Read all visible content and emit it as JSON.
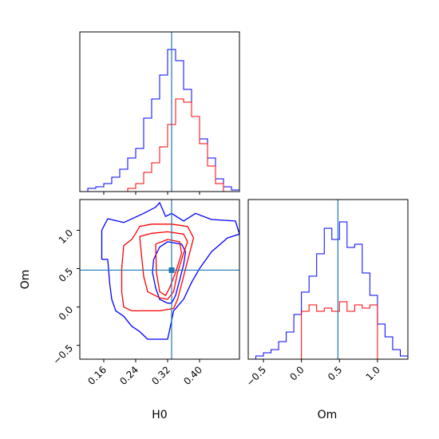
{
  "chart_data": [
    {
      "type": "histogram",
      "panel": "H0-marginal",
      "xlim": [
        0.1,
        0.5
      ],
      "truth": 0.33,
      "bins": [
        0.1,
        0.11,
        0.12,
        0.13,
        0.14,
        0.15,
        0.16,
        0.17,
        0.18,
        0.19,
        0.2,
        0.21,
        0.22,
        0.23,
        0.24,
        0.25,
        0.26,
        0.27,
        0.28,
        0.29,
        0.3,
        0.31,
        0.32,
        0.33,
        0.34,
        0.35,
        0.36,
        0.37,
        0.38,
        0.39,
        0.4,
        0.41,
        0.42,
        0.43,
        0.44,
        0.45,
        0.46,
        0.47,
        0.48,
        0.49,
        0.5
      ],
      "series": [
        {
          "color": "#0000ff",
          "values": [
            0,
            0,
            0.02,
            0.02,
            0.03,
            0.03,
            0.05,
            0.05,
            0.09,
            0.09,
            0.14,
            0.14,
            0.21,
            0.21,
            0.27,
            0.27,
            0.46,
            0.46,
            0.58,
            0.58,
            0.73,
            0.73,
            0.89,
            0.89,
            0.82,
            0.82,
            0.64,
            0.64,
            0.47,
            0.47,
            0.33,
            0.33,
            0.21,
            0.21,
            0.08,
            0.08,
            0.03,
            0.03,
            0.01,
            0.01
          ]
        },
        {
          "color": "#ff0000",
          "values": [
            0,
            0,
            0,
            0,
            0,
            0,
            0,
            0,
            0,
            0,
            0,
            0,
            0.02,
            0.02,
            0.05,
            0.05,
            0.12,
            0.12,
            0.18,
            0.18,
            0.28,
            0.28,
            0.42,
            0.42,
            0.58,
            0.58,
            0.56,
            0.56,
            0.47,
            0.47,
            0.3,
            0.3,
            0.16,
            0.16,
            0.05,
            0.05,
            0,
            0,
            0,
            0
          ]
        }
      ],
      "ticks": [
        "0.16",
        "0.24",
        "0.32",
        "0.40"
      ]
    },
    {
      "type": "contour",
      "panel": "H0-Om-joint",
      "xlabel": "H0",
      "ylabel": "Om",
      "xlim": [
        0.1,
        0.5
      ],
      "ylim": [
        -0.68,
        1.4
      ],
      "x_ticks": [
        0.16,
        0.24,
        0.32,
        0.4
      ],
      "y_ticks": [
        -0.5,
        0.0,
        0.5,
        1.0
      ],
      "x_tick_labels": [
        "0.16",
        "0.24",
        "0.32",
        "0.40"
      ],
      "y_tick_labels": [
        "−0.5",
        "0.0",
        "0.5",
        "1.0"
      ],
      "truth": {
        "x": 0.33,
        "y": 0.48
      },
      "series": [
        {
          "color": "#0000ff",
          "contours": [
            [
              [
                0.155,
                0.62
              ],
              [
                0.155,
                1.0
              ],
              [
                0.17,
                1.15
              ],
              [
                0.21,
                1.1
              ],
              [
                0.26,
                1.22
              ],
              [
                0.29,
                1.3
              ],
              [
                0.3,
                1.36
              ],
              [
                0.315,
                1.18
              ],
              [
                0.33,
                1.22
              ],
              [
                0.36,
                1.12
              ],
              [
                0.39,
                1.22
              ],
              [
                0.43,
                1.14
              ],
              [
                0.49,
                1.12
              ],
              [
                0.5,
                0.95
              ],
              [
                0.47,
                0.9
              ],
              [
                0.43,
                0.72
              ],
              [
                0.4,
                0.5
              ],
              [
                0.38,
                0.32
              ],
              [
                0.36,
                0.1
              ],
              [
                0.335,
                -0.05
              ],
              [
                0.325,
                -0.3
              ],
              [
                0.32,
                -0.42
              ],
              [
                0.27,
                -0.42
              ],
              [
                0.25,
                -0.32
              ],
              [
                0.23,
                -0.25
              ],
              [
                0.21,
                -0.12
              ],
              [
                0.19,
                -0.05
              ],
              [
                0.18,
                0.1
              ],
              [
                0.175,
                0.3
              ],
              [
                0.17,
                0.62
              ],
              [
                0.155,
                0.62
              ]
            ],
            [
              [
                0.285,
                0.62
              ],
              [
                0.3,
                0.78
              ],
              [
                0.32,
                0.85
              ],
              [
                0.355,
                0.82
              ],
              [
                0.365,
                0.72
              ],
              [
                0.36,
                0.55
              ],
              [
                0.35,
                0.35
              ],
              [
                0.34,
                0.15
              ],
              [
                0.33,
                0.05
              ],
              [
                0.32,
                0.05
              ],
              [
                0.3,
                0.1
              ],
              [
                0.29,
                0.25
              ],
              [
                0.282,
                0.45
              ],
              [
                0.285,
                0.62
              ]
            ]
          ]
        },
        {
          "color": "#ff0000",
          "contours": [
            [
              [
                0.21,
                0.8
              ],
              [
                0.23,
                0.88
              ],
              [
                0.24,
                0.96
              ],
              [
                0.25,
                1.05
              ],
              [
                0.28,
                1.08
              ],
              [
                0.33,
                1.08
              ],
              [
                0.37,
                1.05
              ],
              [
                0.385,
                0.9
              ],
              [
                0.375,
                0.7
              ],
              [
                0.365,
                0.5
              ],
              [
                0.355,
                0.3
              ],
              [
                0.345,
                0.1
              ],
              [
                0.335,
                -0.02
              ],
              [
                0.3,
                -0.05
              ],
              [
                0.23,
                -0.05
              ],
              [
                0.21,
                0.0
              ],
              [
                0.205,
                0.2
              ],
              [
                0.205,
                0.5
              ],
              [
                0.21,
                0.8
              ]
            ],
            [
              [
                0.25,
                0.92
              ],
              [
                0.28,
                0.96
              ],
              [
                0.32,
                0.98
              ],
              [
                0.36,
                0.95
              ],
              [
                0.37,
                0.85
              ],
              [
                0.36,
                0.7
              ],
              [
                0.345,
                0.45
              ],
              [
                0.335,
                0.2
              ],
              [
                0.32,
                0.1
              ],
              [
                0.3,
                0.12
              ],
              [
                0.27,
                0.2
              ],
              [
                0.26,
                0.4
              ],
              [
                0.255,
                0.65
              ],
              [
                0.25,
                0.92
              ]
            ],
            [
              [
                0.29,
                0.82
              ],
              [
                0.32,
                0.88
              ],
              [
                0.35,
                0.85
              ],
              [
                0.355,
                0.7
              ],
              [
                0.34,
                0.45
              ],
              [
                0.325,
                0.25
              ],
              [
                0.315,
                0.15
              ],
              [
                0.3,
                0.2
              ],
              [
                0.292,
                0.45
              ],
              [
                0.29,
                0.82
              ]
            ]
          ]
        }
      ]
    },
    {
      "type": "histogram",
      "panel": "Om-marginal",
      "xlabel": "Om",
      "xlim": [
        -0.7,
        1.4
      ],
      "truth": 0.48,
      "x_ticks": [
        -0.5,
        0.0,
        0.5,
        1.0
      ],
      "tick_labels": [
        "−0.5",
        "0.0",
        "0.5",
        "1.0"
      ],
      "bins": [
        -0.7,
        -0.6,
        -0.5,
        -0.4,
        -0.3,
        -0.2,
        -0.1,
        0.0,
        0.1,
        0.2,
        0.3,
        0.4,
        0.5,
        0.6,
        0.7,
        0.8,
        0.9,
        1.0,
        1.1,
        1.2,
        1.3,
        1.4
      ],
      "series": [
        {
          "color": "#0000ff",
          "values": [
            0,
            0.02,
            0.04,
            0.06,
            0.11,
            0.17,
            0.28,
            0.42,
            0.52,
            0.66,
            0.82,
            0.75,
            0.86,
            0.7,
            0.72,
            0.54,
            0.4,
            0.22,
            0.14,
            0.06,
            0.02
          ]
        },
        {
          "color": "#ff0000",
          "values": [
            0,
            0,
            0,
            0,
            0,
            0,
            0,
            0.3,
            0.34,
            0.3,
            0.32,
            0.3,
            0.36,
            0.3,
            0.34,
            0.32,
            0.34,
            0,
            0,
            0,
            0
          ]
        }
      ]
    }
  ]
}
